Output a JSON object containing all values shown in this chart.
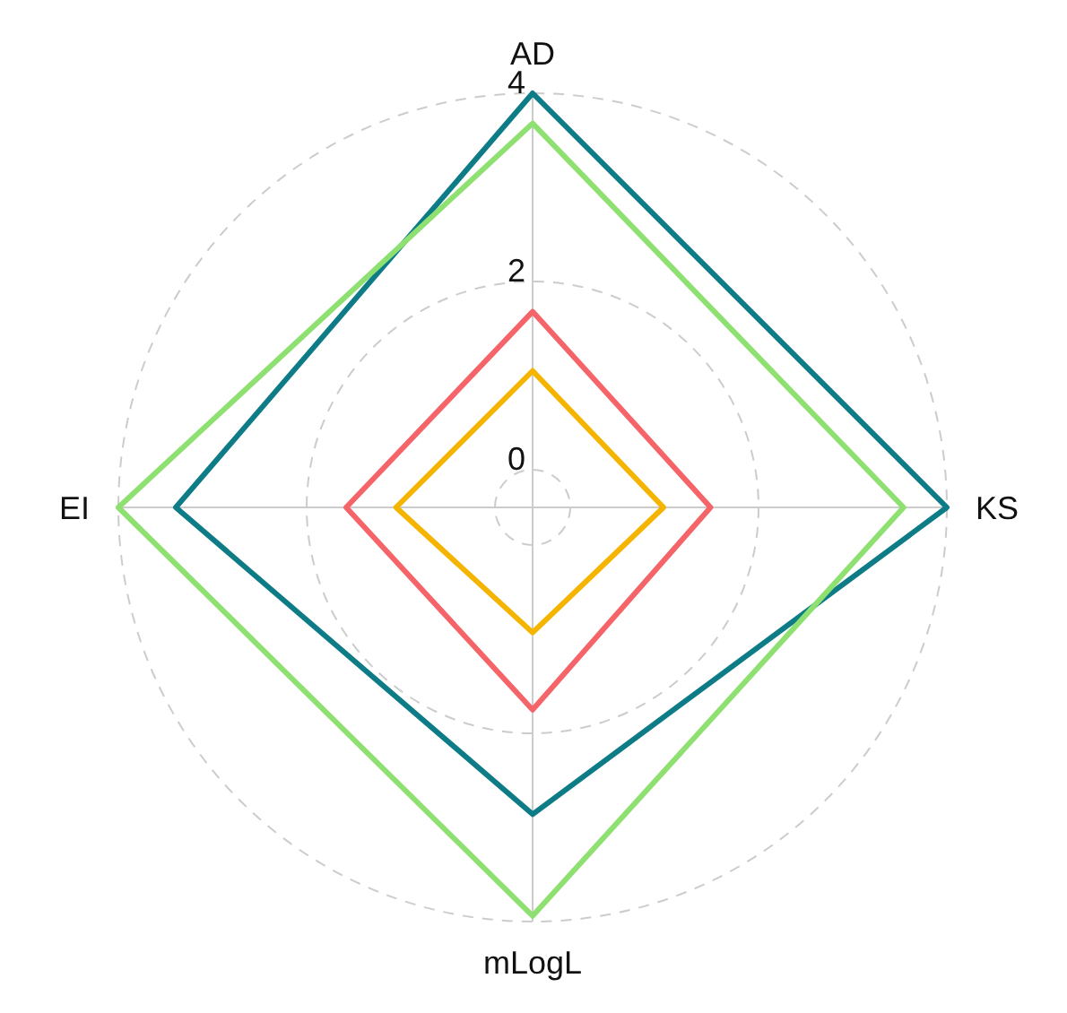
{
  "chart_data": {
    "type": "radar",
    "categories": [
      "AD",
      "KS",
      "mLogL",
      "EI"
    ],
    "series": [
      {
        "color": "#0e7c86",
        "values": [
          4,
          4,
          2.86,
          3.39
        ]
      },
      {
        "color": "#8ee070",
        "values": [
          3.68,
          3.54,
          3.94,
          4
        ]
      },
      {
        "color": "#f56468",
        "values": [
          1.68,
          1.49,
          1.75,
          1.58
        ]
      },
      {
        "color": "#f5b400",
        "values": [
          1.05,
          0.99,
          0.93,
          1.05
        ]
      }
    ],
    "ylim": [
      -0.4,
      4
    ],
    "yticks": [
      0,
      2,
      4
    ],
    "grid": true,
    "marker": "none",
    "line_style": "solid"
  }
}
